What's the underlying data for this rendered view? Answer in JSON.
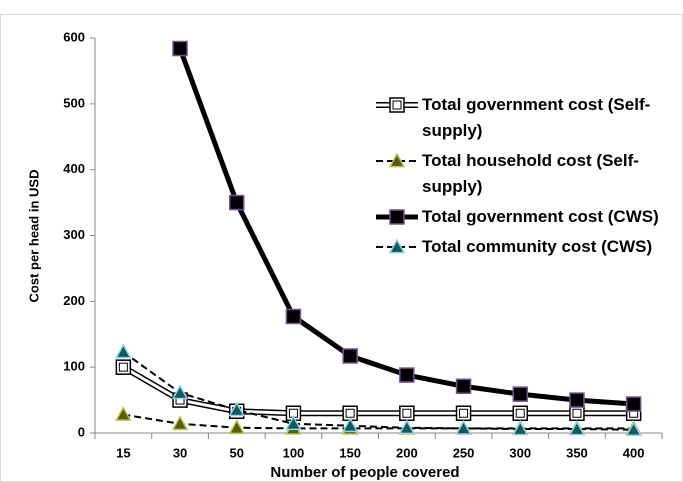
{
  "chart_data": {
    "type": "line",
    "x_label": "Number of people covered",
    "y_label": "Cost per head in USD",
    "categories": [
      "15",
      "30",
      "50",
      "100",
      "150",
      "200",
      "250",
      "300",
      "350",
      "400"
    ],
    "ylim": [
      0,
      600
    ],
    "yticks": [
      0,
      100,
      200,
      300,
      400,
      500,
      600
    ],
    "grid": false,
    "series": [
      {
        "name": "Total government cost (Self-supply)",
        "color": "#000000",
        "marker_fill": "#ffffff",
        "marker": "square",
        "line_style": "double",
        "values": [
          100,
          50,
          33,
          30,
          30,
          30,
          30,
          30,
          30,
          30
        ]
      },
      {
        "name": "Total household cost (Self-supply)",
        "color": "#000000",
        "marker_fill": "#5a5a12",
        "marker_edge": "#b8c94a",
        "marker": "triangle",
        "line_style": "dashed",
        "values": [
          28,
          14,
          8,
          7,
          7,
          7,
          7,
          7,
          7,
          7
        ]
      },
      {
        "name": "Total government cost (CWS)",
        "color": "#000000",
        "marker_fill": "#000000",
        "marker_edge": "#7a4f9a",
        "marker": "square",
        "line_style": "thick",
        "values": [
          null,
          584,
          350,
          177,
          117,
          88,
          71,
          59,
          50,
          44
        ]
      },
      {
        "name": "Total community cost (CWS)",
        "color": "#000000",
        "marker_fill": "#0f5a5a",
        "marker_edge": "#8fd4e8",
        "marker": "triangle",
        "line_style": "dashed",
        "values": [
          123,
          61,
          35,
          14,
          11,
          8,
          7,
          6,
          6,
          5
        ]
      }
    ]
  }
}
